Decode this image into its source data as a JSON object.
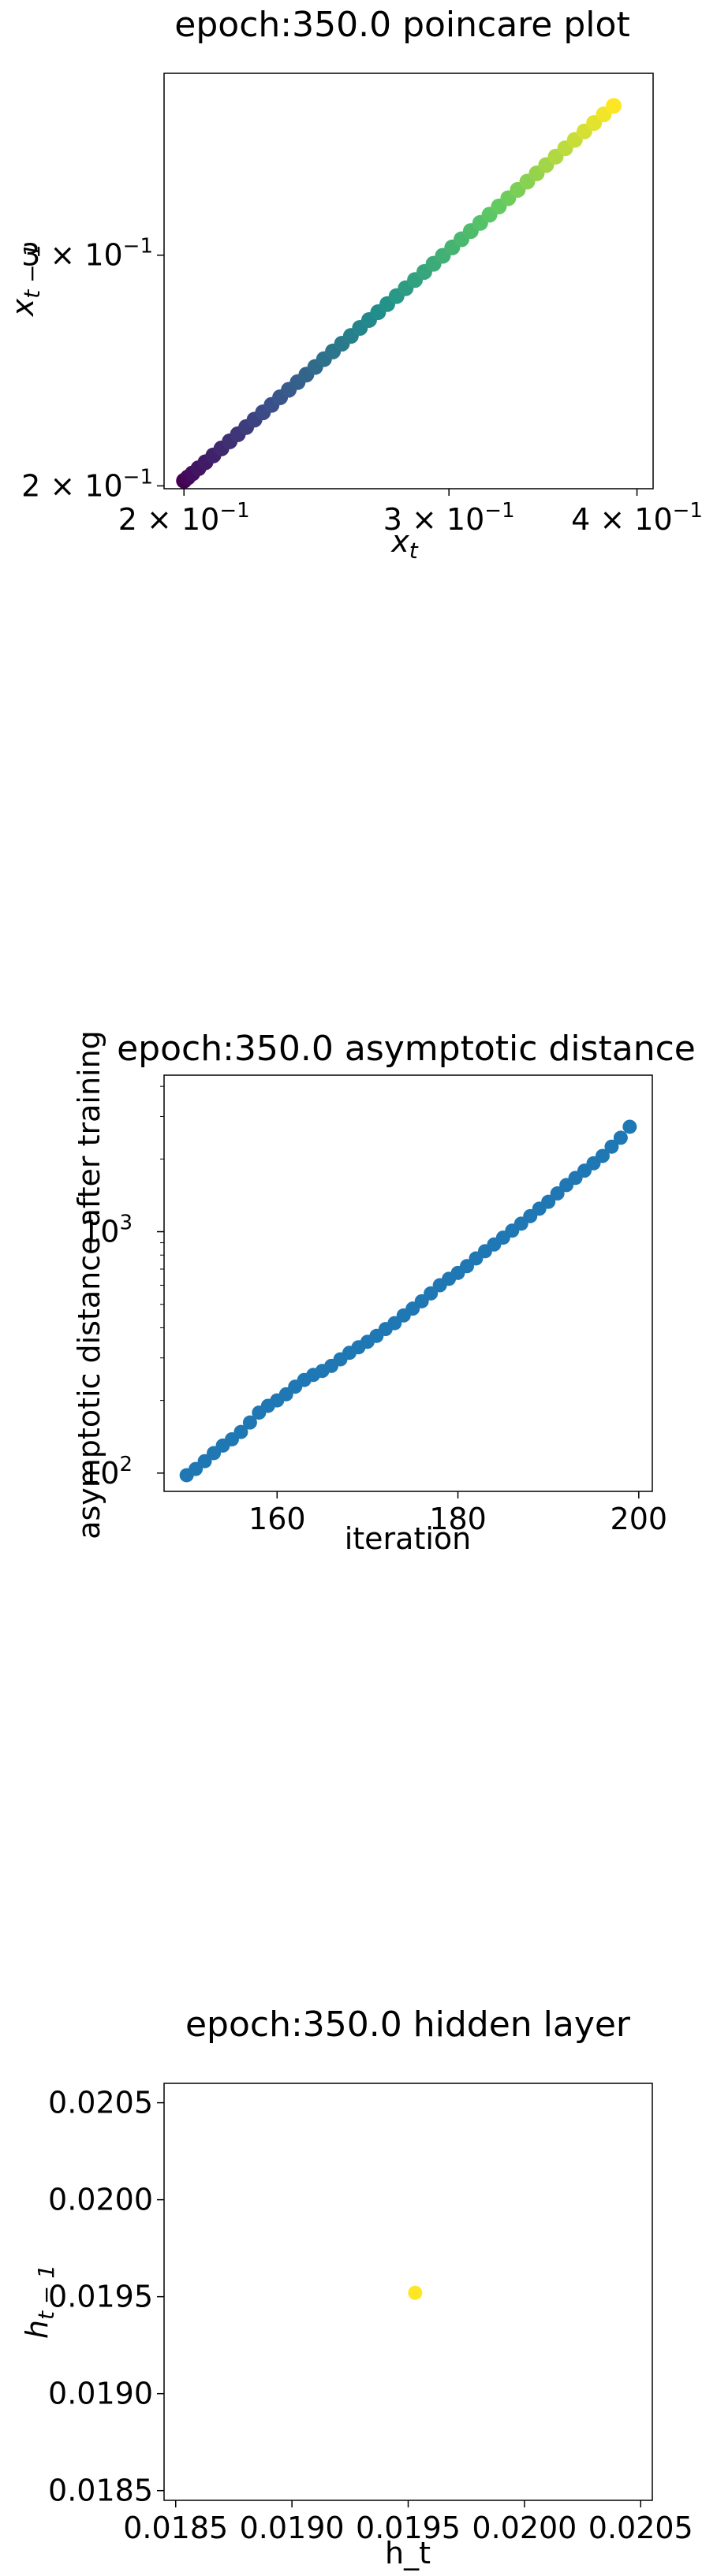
{
  "chart_data": [
    {
      "type": "scatter",
      "title": "epoch:350.0 poincare plot",
      "xlabel": "x_t",
      "ylabel": "x_{t-1}",
      "xscale": "log",
      "yscale": "log",
      "xlim": [
        0.194,
        0.41
      ],
      "ylim": [
        0.199,
        0.413
      ],
      "xticks": [
        {
          "value": 0.2,
          "base": "2 × 10",
          "exp": "−1"
        },
        {
          "value": 0.3,
          "base": "3 × 10",
          "exp": "−1"
        },
        {
          "value": 0.4,
          "base": "4 × 10",
          "exp": "−1"
        }
      ],
      "yticks": [
        {
          "value": 0.2,
          "base": "2 × 10",
          "exp": "−1"
        },
        {
          "value": 0.3,
          "base": "3 × 10",
          "exp": "−1"
        }
      ],
      "colormap": [
        "#440154",
        "#3b528b",
        "#21918c",
        "#5ec962",
        "#fde725"
      ],
      "grid": false,
      "x": [
        0.2,
        0.2012,
        0.2026,
        0.2045,
        0.2067,
        0.2092,
        0.2118,
        0.2145,
        0.2172,
        0.22,
        0.2228,
        0.2257,
        0.2287,
        0.2317,
        0.2348,
        0.238,
        0.2412,
        0.2445,
        0.2478,
        0.2512,
        0.2547,
        0.2582,
        0.2618,
        0.2655,
        0.2692,
        0.273,
        0.2769,
        0.2808,
        0.2848,
        0.2889,
        0.293,
        0.2972,
        0.3015,
        0.3058,
        0.3102,
        0.3147,
        0.3192,
        0.3238,
        0.3285,
        0.3333,
        0.3382,
        0.3431,
        0.3481,
        0.3532,
        0.3584,
        0.3637,
        0.3691,
        0.3746,
        0.3802,
        0.386
      ],
      "y": [
        0.2018,
        0.203,
        0.2044,
        0.2063,
        0.2085,
        0.211,
        0.2136,
        0.2163,
        0.219,
        0.2218,
        0.2247,
        0.2276,
        0.2306,
        0.2337,
        0.2368,
        0.24,
        0.2432,
        0.2465,
        0.2499,
        0.2533,
        0.2568,
        0.2603,
        0.264,
        0.2677,
        0.2714,
        0.2753,
        0.2792,
        0.2831,
        0.2872,
        0.2913,
        0.2955,
        0.2997,
        0.3041,
        0.3085,
        0.313,
        0.3175,
        0.3221,
        0.3268,
        0.3316,
        0.3365,
        0.3414,
        0.3464,
        0.3515,
        0.3567,
        0.362,
        0.3674,
        0.3729,
        0.3785,
        0.3842,
        0.39
      ]
    },
    {
      "type": "scatter",
      "title": "epoch:350.0 asymptotic distance",
      "xlabel": "iteration",
      "ylabel": "asymptotic distance after training",
      "xscale": "linear",
      "yscale": "log",
      "xlim": [
        147.5,
        201.5
      ],
      "ylim": [
        84,
        4450
      ],
      "xticks": [
        160,
        180,
        200
      ],
      "yticks": [
        {
          "value": 100,
          "base": "10",
          "exp": "2"
        },
        {
          "value": 1000,
          "base": "10",
          "exp": "3"
        }
      ],
      "color": "#1f77b4",
      "grid": false,
      "x": [
        150,
        151,
        152,
        153,
        154,
        155,
        156,
        157,
        158,
        159,
        160,
        161,
        162,
        163,
        164,
        165,
        166,
        167,
        168,
        169,
        170,
        171,
        172,
        173,
        174,
        175,
        176,
        177,
        178,
        179,
        180,
        181,
        182,
        183,
        184,
        185,
        186,
        187,
        188,
        189,
        190,
        191,
        192,
        193,
        194,
        195,
        196,
        197,
        198,
        199
      ],
      "y": [
        98,
        104,
        112,
        121,
        130,
        138,
        148,
        162,
        178,
        190,
        200,
        212,
        228,
        243,
        255,
        265,
        278,
        296,
        315,
        332,
        350,
        370,
        395,
        418,
        450,
        480,
        515,
        555,
        600,
        638,
        675,
        720,
        775,
        830,
        885,
        945,
        1010,
        1080,
        1160,
        1245,
        1330,
        1440,
        1560,
        1670,
        1790,
        1920,
        2060,
        2250,
        2450,
        2720
      ]
    },
    {
      "type": "scatter",
      "title": "epoch:350.0 hidden layer",
      "xlabel": "h_t",
      "ylabel": "h_{t-1}",
      "xlim": [
        0.01845,
        0.02055
      ],
      "ylim": [
        0.01845,
        0.0206
      ],
      "xticks": [
        "0.0185",
        "0.0190",
        "0.0195",
        "0.0200",
        "0.0205"
      ],
      "yticks": [
        "0.0185",
        "0.0190",
        "0.0195",
        "0.0200",
        "0.0205"
      ],
      "color": "#fde725",
      "grid": false,
      "x": [
        0.01953
      ],
      "y": [
        0.01952
      ]
    }
  ]
}
